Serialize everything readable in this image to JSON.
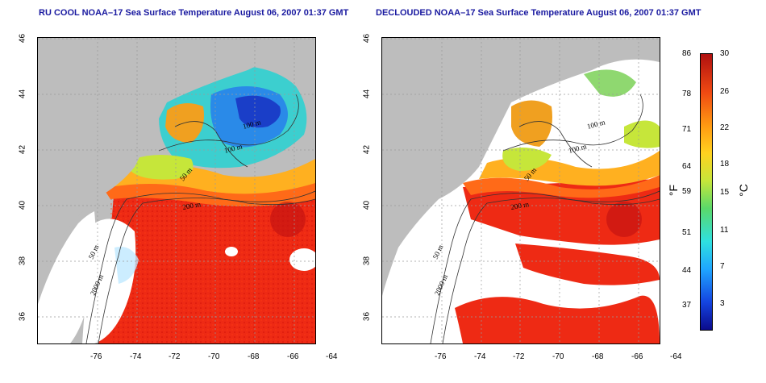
{
  "panels": [
    {
      "title": "RU COOL NOAA–17 Sea Surface Temperature August 06, 2007 01:37 GMT"
    },
    {
      "title": "DECLOUDED NOAA–17 Sea Surface Temperature August 06, 2007 01:37 GMT"
    }
  ],
  "axes": {
    "x_ticks": [
      "-76",
      "-74",
      "-72",
      "-70",
      "-68",
      "-66",
      "-64"
    ],
    "y_ticks": [
      "46",
      "44",
      "42",
      "40",
      "38",
      "36"
    ]
  },
  "contours": [
    "100 m",
    "100 m",
    "50 m",
    "200 m",
    "50 m",
    "2000 m"
  ],
  "colorbar": {
    "fahrenheit_label": "°F",
    "celsius_label": "°C",
    "fahrenheit_ticks": [
      "86",
      "78",
      "71",
      "64",
      "59",
      "51",
      "44",
      "37"
    ],
    "celsius_ticks": [
      "30",
      "26",
      "22",
      "18",
      "15",
      "11",
      "7",
      "3"
    ]
  },
  "colors": {
    "land": "#bdbdbd",
    "cloud": "#ffffff",
    "title": "#1a1aa0"
  }
}
